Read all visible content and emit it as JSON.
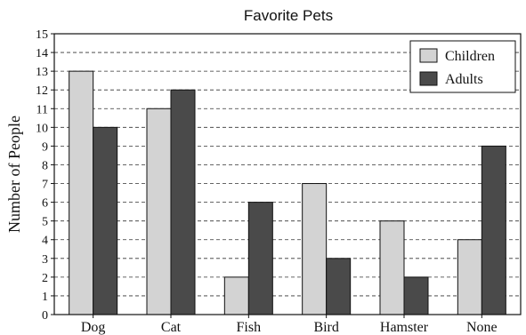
{
  "chart_data": {
    "type": "bar",
    "title": "Favorite Pets",
    "xlabel": "",
    "ylabel": "Number of People",
    "categories": [
      "Dog",
      "Cat",
      "Fish",
      "Bird",
      "Hamster",
      "None"
    ],
    "series": [
      {
        "name": "Children",
        "values": [
          13,
          11,
          2,
          7,
          5,
          4
        ],
        "color": "#d3d3d3"
      },
      {
        "name": "Adults",
        "values": [
          10,
          12,
          6,
          3,
          2,
          9
        ],
        "color": "#4a4a4a"
      }
    ],
    "ylim": [
      0,
      15
    ],
    "yticks": [
      "0",
      "1",
      "2",
      "3",
      "4",
      "5",
      "6",
      "7",
      "8",
      "9",
      "10",
      "11",
      "12",
      "13",
      "14",
      "15"
    ],
    "grid": "dashed horizontal",
    "legend_position": "top-right"
  }
}
